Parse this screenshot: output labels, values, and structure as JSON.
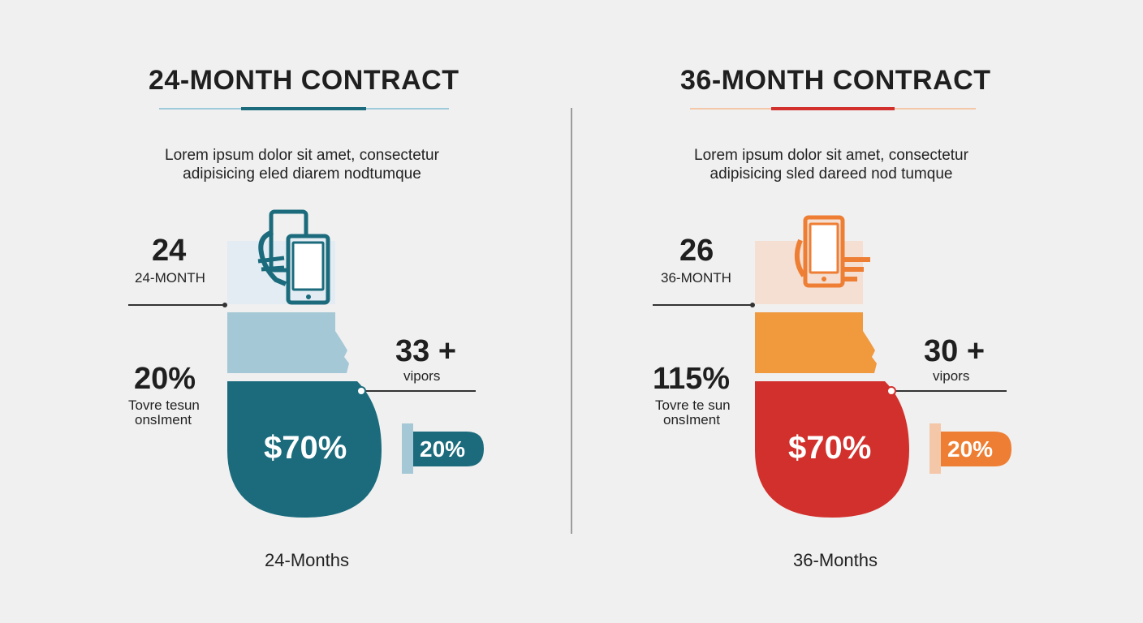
{
  "left": {
    "title": "24-MONTH CONTRACT",
    "description_lines": [
      "Lorem ipsum dolor sit amet, consectetur",
      "adipisicing eled diarem nodtumque"
    ],
    "stat_top": {
      "value": "24",
      "label": "24-MONTH"
    },
    "stat_mid": {
      "value": "20%",
      "label_lines": [
        "Tovre tesun",
        "onsIment"
      ]
    },
    "stat_right": {
      "value": "33 +",
      "label": "vipors"
    },
    "center_value": "$70%",
    "badge_value": "20%",
    "bottom_label": "24-Months",
    "colors": {
      "dark": "#1b6b7d",
      "light": "#a5c8d6",
      "pale": "#e3ecf2",
      "icon": "#1b6b7d"
    }
  },
  "right": {
    "title": "36-MONTH CONTRACT",
    "description_lines": [
      "Lorem ipsum dolor sit amet, consectetur",
      "adipisicing sled dareed nod tumque"
    ],
    "stat_top": {
      "value": "26",
      "label": "36-MONTH"
    },
    "stat_mid": {
      "value": "115%",
      "label_lines": [
        "Tovre te sun",
        "onsIment"
      ]
    },
    "stat_right": {
      "value": "30 +",
      "label": "vipors"
    },
    "center_value": "$70%",
    "badge_value": "20%",
    "bottom_label": "36-Months",
    "colors": {
      "dark": "#d2302c",
      "light": "#f0993d",
      "pale": "#f4dfd2",
      "icon": "#ee7e33"
    }
  }
}
